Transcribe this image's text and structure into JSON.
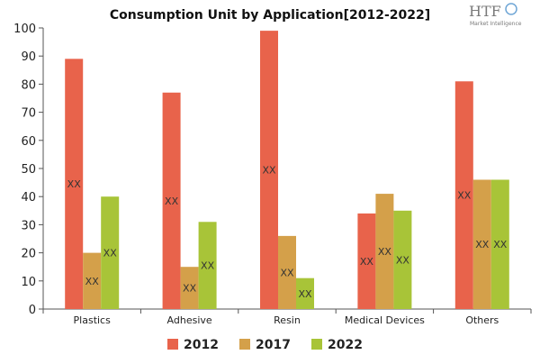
{
  "chart_data": {
    "type": "bar",
    "title": "Consumption Unit by  Application[2012-2022]",
    "categories": [
      "Plastics",
      "Adhesive",
      "Resin",
      "Medical Devices",
      "Others"
    ],
    "series": [
      {
        "name": "2012",
        "color": "#e8634b",
        "values": [
          89,
          77,
          99,
          34,
          81
        ],
        "labels": [
          "XX",
          "XX",
          "XX",
          "XX",
          "XX"
        ]
      },
      {
        "name": "2017",
        "color": "#d4a04a",
        "values": [
          20,
          15,
          26,
          41,
          46
        ],
        "labels": [
          "XX",
          "XX",
          "XX",
          "XX",
          "XX"
        ]
      },
      {
        "name": "2022",
        "color": "#a8c438",
        "values": [
          40,
          31,
          11,
          35,
          46
        ],
        "labels": [
          "XX",
          "XX",
          "XX",
          "XX",
          "XX"
        ]
      }
    ],
    "ylim": [
      0,
      100
    ],
    "yticks": [
      0,
      10,
      20,
      30,
      40,
      50,
      60,
      70,
      80,
      90,
      100
    ],
    "xlabel": "",
    "ylabel": "",
    "grid": false,
    "legend": "bottom"
  },
  "logo": {
    "text": "HTF",
    "subtext": "Market Intelligence"
  }
}
